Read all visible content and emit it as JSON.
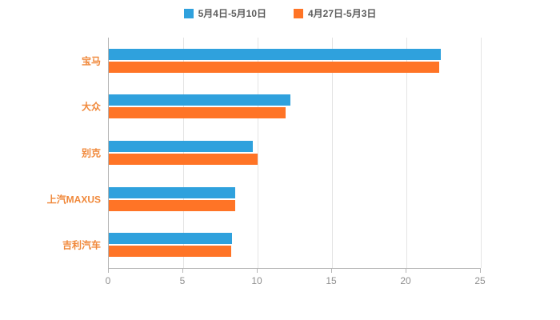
{
  "chart_data": {
    "type": "bar",
    "orientation": "horizontal",
    "title": "",
    "categories": [
      "宝马",
      "大众",
      "别克",
      "上汽MAXUS",
      "吉利汽车"
    ],
    "series": [
      {
        "name": "5月4日-5月10日",
        "color": "#2fa1dd",
        "values": [
          22.3,
          12.2,
          9.7,
          8.5,
          8.3
        ]
      },
      {
        "name": "4月27日-5月3日",
        "color": "#ff7426",
        "values": [
          22.2,
          11.9,
          10.0,
          8.5,
          8.2
        ]
      }
    ],
    "xlim": [
      0,
      25
    ],
    "x_ticks": [
      0,
      5,
      10,
      15,
      20,
      25
    ],
    "grid": true,
    "legend_position": "top"
  },
  "colors": {
    "series_blue": "#2fa1dd",
    "series_orange": "#ff7426",
    "category_label": "#f0883a",
    "x_tick_label": "#8f8f8f",
    "gridline": "#e3e3e3",
    "axis_line": "#b5b5b5",
    "background": "#ffffff"
  }
}
